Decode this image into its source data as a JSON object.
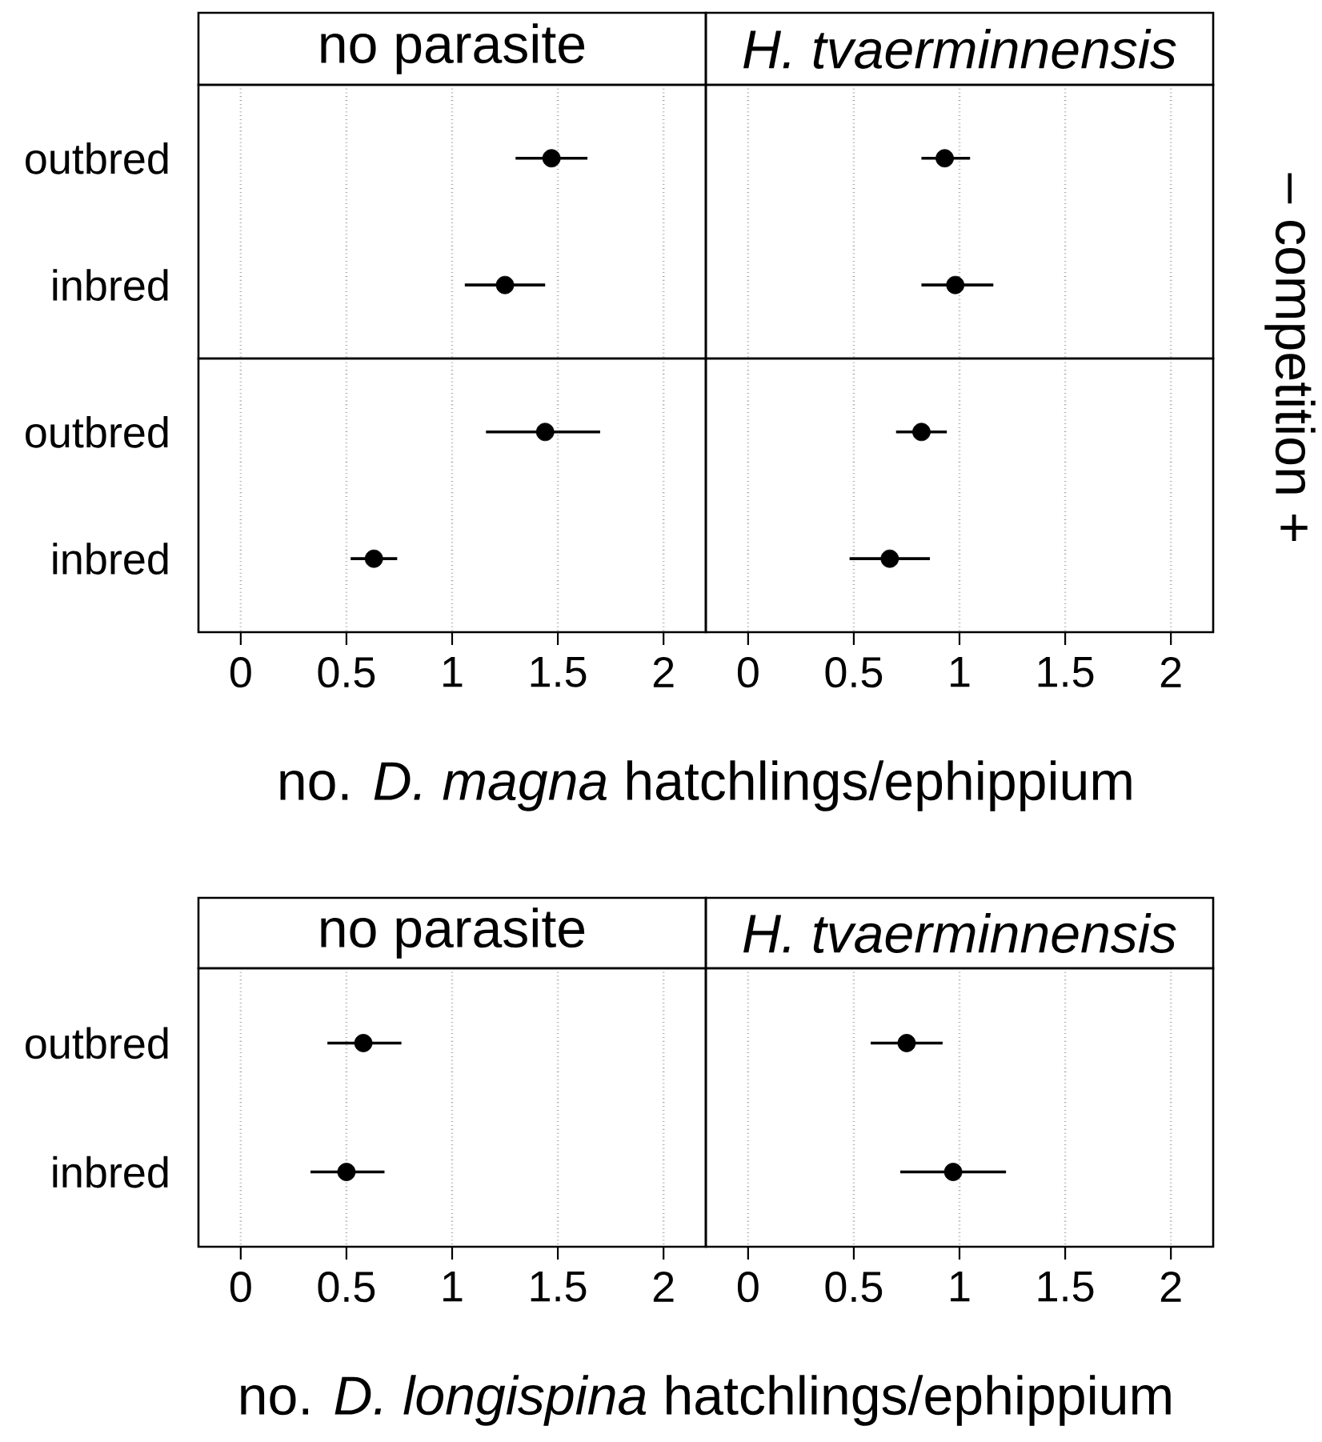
{
  "chart_data": [
    {
      "type": "scatter",
      "orientation": "horizontal",
      "title": "no parasite",
      "categories": [
        "outbred",
        "inbred"
      ],
      "values": [
        1.47,
        1.25
      ],
      "errors": [
        [
          1.3,
          1.64
        ],
        [
          1.06,
          1.44
        ]
      ],
      "color": "#000000",
      "marker": "circle",
      "xlim": [
        -0.2,
        2.2
      ],
      "xticks": [
        0,
        0.5,
        1,
        1.5,
        2
      ],
      "grid": "x",
      "tick_labels": "y"
    },
    {
      "type": "scatter",
      "orientation": "horizontal",
      "title": "*H. tvaerminnensis*",
      "y2label": "– competition +",
      "categories": [
        null,
        null
      ],
      "values": [
        0.93,
        0.98
      ],
      "errors": [
        [
          0.82,
          1.05
        ],
        [
          0.82,
          1.16
        ]
      ],
      "color": "#000000",
      "marker": "circle",
      "xlim": [
        -0.2,
        2.2
      ],
      "xticks": [
        0,
        0.5,
        1,
        1.5,
        2
      ],
      "grid": "x",
      "tick_labels": false
    },
    {
      "type": "scatter",
      "orientation": "horizontal",
      "xlabel": "no. *D. magna* hatchlings/ephippium",
      "categories": [
        "outbred",
        "inbred"
      ],
      "values": [
        1.44,
        0.63
      ],
      "errors": [
        [
          1.16,
          1.7
        ],
        [
          0.52,
          0.74
        ]
      ],
      "color": "#000000",
      "marker": "circle",
      "xlim": [
        -0.2,
        2.2
      ],
      "xticks": [
        0,
        0.5,
        1,
        1.5,
        2
      ],
      "grid": "x"
    },
    {
      "type": "scatter",
      "orientation": "horizontal",
      "categories": [
        null,
        null
      ],
      "values": [
        0.82,
        0.67
      ],
      "errors": [
        [
          0.7,
          0.94
        ],
        [
          0.48,
          0.86
        ]
      ],
      "color": "#000000",
      "marker": "circle",
      "xlim": [
        -0.2,
        2.2
      ],
      "xticks": [
        0,
        0.5,
        1,
        1.5,
        2
      ],
      "grid": "x",
      "tick_labels": "x"
    },
    {
      "type": "scatter",
      "orientation": "horizontal",
      "title": "no parasite",
      "xlabel": "no. *D. longispina* hatchlings/ephippium",
      "categories": [
        "outbred",
        "inbred"
      ],
      "values": [
        0.58,
        0.5
      ],
      "errors": [
        [
          0.41,
          0.76
        ],
        [
          0.33,
          0.68
        ]
      ],
      "color": "#000000",
      "marker": "circle",
      "xlim": [
        -0.2,
        2.2
      ],
      "xticks": [
        0,
        0.5,
        1,
        1.5,
        2
      ],
      "grid": "x"
    },
    {
      "type": "scatter",
      "orientation": "horizontal",
      "title": "*H. tvaerminnensis*",
      "categories": [
        null,
        null
      ],
      "values": [
        0.75,
        0.97
      ],
      "errors": [
        [
          0.58,
          0.92
        ],
        [
          0.72,
          1.22
        ]
      ],
      "color": "#000000",
      "marker": "circle",
      "xlim": [
        -0.2,
        2.2
      ],
      "xticks": [
        0,
        0.5,
        1,
        1.5,
        2
      ],
      "grid": "x",
      "tick_labels": "x"
    }
  ]
}
